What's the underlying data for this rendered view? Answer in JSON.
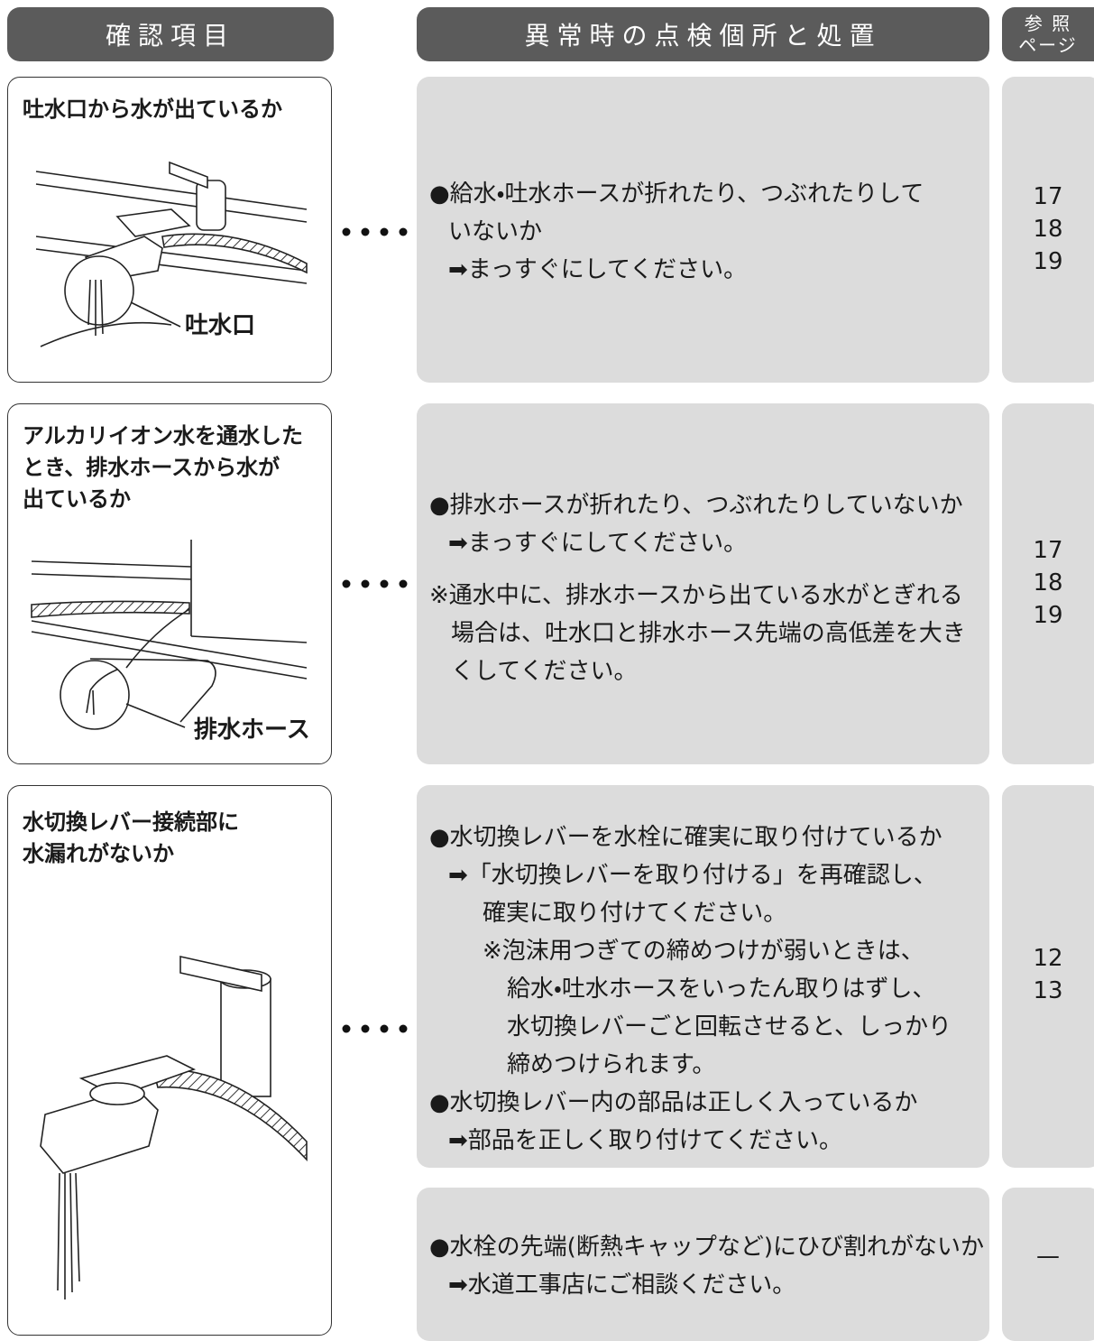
{
  "header": {
    "check_item": "確認項目",
    "action": "異常時の点検個所と処置",
    "ref_page": [
      "参 照",
      "ページ"
    ]
  },
  "rows": [
    {
      "title": [
        "吐水口から水が出ているか"
      ],
      "figure_label": "吐水口",
      "actions": [
        {
          "lines": [
            "●給水・吐水ホースが折れたり、つぶれたりして",
            "いないか",
            "➡まっすぐにしてください。"
          ],
          "pages": [
            "17",
            "18",
            "19"
          ]
        }
      ]
    },
    {
      "title": [
        "アルカリイオン水を通水した",
        "とき、排水ホースから水が",
        "出ているか"
      ],
      "figure_label": "排水ホース",
      "actions": [
        {
          "lines": [
            "●排水ホースが折れたり、つぶれたりしていないか",
            "➡まっすぐにしてください。",
            "※通水中に、排水ホースから出ている水がとぎれる",
            "場合は、吐水口と排水ホース先端の高低差を大き",
            "くしてください。"
          ],
          "pages": [
            "17",
            "18",
            "19"
          ]
        }
      ]
    },
    {
      "title": [
        "水切換レバー接続部に",
        "水漏れがないか"
      ],
      "actions": [
        {
          "lines": [
            "●水切換レバーを水栓に確実に取り付けているか",
            "➡「水切換レバーを取り付ける」を再確認し、",
            "確実に取り付けてください。",
            "※泡沫用つぎての締めつけが弱いときは、",
            "給水・吐水ホースをいったん取りはずし、",
            "水切換レバーごと回転させると、しっかり",
            "締めつけられます。",
            "●水切換レバー内の部品は正しく入っているか",
            "➡部品を正しく取り付けてください。"
          ],
          "pages": [
            "12",
            "13"
          ]
        },
        {
          "lines": [
            "●水栓の先端(断熱キャップなど)にひび割れがないか",
            "➡水道工事店にご相談ください。"
          ],
          "pages": [
            "—"
          ]
        }
      ]
    }
  ]
}
